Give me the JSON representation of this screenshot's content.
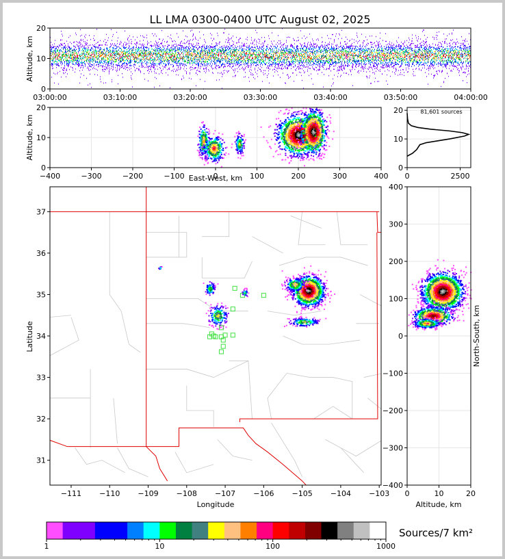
{
  "title": "LL LMA 0300-0400 UTC August 02, 2025",
  "colors": [
    "#ff4dff",
    "#8000ff",
    "#8000ff",
    "#0000ff",
    "#0000ff",
    "#0080ff",
    "#00ffff",
    "#00ff00",
    "#008040",
    "#408080",
    "#ffff00",
    "#ffc080",
    "#ff8000",
    "#ff0080",
    "#ff0000",
    "#c00000",
    "#800000",
    "#000000",
    "#808080",
    "#c0c0c0",
    "#ffffff"
  ],
  "chart_data": [
    {
      "type": "scatter",
      "panel": "altitude-time",
      "ylabel": "Altitude, km",
      "x_ticks": [
        "03:00:00",
        "03:10:00",
        "03:20:00",
        "03:30:00",
        "03:40:00",
        "03:50:00",
        "04:00:00"
      ],
      "y_ticks": [
        0,
        10,
        20
      ],
      "ylim": [
        0,
        20
      ],
      "band_altitude_km": {
        "low": 5,
        "core": 11,
        "high": 16
      }
    },
    {
      "type": "heatmap",
      "panel": "altitude-east-west",
      "xlabel": "East-West, km",
      "ylabel": "Altitude, km",
      "x_ticks": [
        -400,
        -300,
        -200,
        -100,
        0,
        100,
        200,
        300,
        400
      ],
      "y_ticks": [
        0,
        10,
        20
      ],
      "xlim": [
        -400,
        400
      ],
      "ylim": [
        0,
        20
      ],
      "clusters": [
        {
          "x": -30,
          "z": 9,
          "sx": 6,
          "sz": 2.5,
          "n": 80
        },
        {
          "x": -5,
          "z": 6.5,
          "sx": 12,
          "sz": 2,
          "n": 110
        },
        {
          "x": 57,
          "z": 8,
          "sx": 5,
          "sz": 1.5,
          "n": 50
        },
        {
          "x": 200,
          "z": 11,
          "sx": 25,
          "sz": 3.2,
          "n": 500
        },
        {
          "x": 235,
          "z": 12,
          "sx": 15,
          "sz": 3.5,
          "n": 280
        }
      ]
    },
    {
      "type": "line",
      "panel": "altitude-histogram",
      "annotation": "81,601 sources",
      "x_ticks": [
        0,
        2500
      ],
      "y_ticks": [
        0,
        10,
        20
      ],
      "xlim": [
        0,
        3000
      ],
      "ylim": [
        0,
        21
      ],
      "profile": [
        [
          0,
          4
        ],
        [
          250,
          5
        ],
        [
          450,
          6.3
        ],
        [
          600,
          8
        ],
        [
          900,
          8.7
        ],
        [
          1400,
          9.3
        ],
        [
          2000,
          10
        ],
        [
          2700,
          11
        ],
        [
          2900,
          11.6
        ],
        [
          2600,
          12.2
        ],
        [
          2000,
          12.8
        ],
        [
          1100,
          13.4
        ],
        [
          500,
          14
        ],
        [
          200,
          14.6
        ],
        [
          60,
          15.5
        ],
        [
          20,
          17
        ],
        [
          0,
          19
        ]
      ]
    },
    {
      "type": "heatmap",
      "panel": "plan-view",
      "xlabel": "Longitude",
      "ylabel": "Latitude",
      "x_ticks": [
        -111,
        -110,
        -109,
        -108,
        -107,
        -106,
        -105,
        -104,
        -103
      ],
      "y_ticks": [
        31,
        32,
        33,
        34,
        35,
        36,
        37
      ],
      "xlim": [
        -111.55,
        -102.95
      ],
      "ylim": [
        30.4,
        37.6
      ],
      "clusters": [
        {
          "lon": -104.85,
          "lat": 35.1,
          "slon": 0.2,
          "slat": 0.18,
          "n": 700
        },
        {
          "lon": -105.2,
          "lat": 35.25,
          "slon": 0.12,
          "slat": 0.08,
          "n": 120
        },
        {
          "lon": -104.95,
          "lat": 34.35,
          "slon": 0.18,
          "slat": 0.05,
          "n": 80
        },
        {
          "lon": -107.4,
          "lat": 35.15,
          "slon": 0.06,
          "slat": 0.08,
          "n": 50
        },
        {
          "lon": -107.2,
          "lat": 34.5,
          "slon": 0.12,
          "slat": 0.12,
          "n": 90
        },
        {
          "lon": -106.5,
          "lat": 35.05,
          "slon": 0.04,
          "slat": 0.04,
          "n": 25
        },
        {
          "lon": -108.7,
          "lat": 35.65,
          "slon": 0.02,
          "slat": 0.02,
          "n": 6
        }
      ],
      "stations": [
        [
          -107.3,
          34.0
        ],
        [
          -107.25,
          33.98
        ],
        [
          -107.1,
          33.98
        ],
        [
          -107.0,
          34.02
        ],
        [
          -107.1,
          34.2
        ],
        [
          -107.05,
          33.9
        ],
        [
          -107.05,
          33.75
        ],
        [
          -107.1,
          33.62
        ],
        [
          -107.35,
          34.05
        ],
        [
          -107.4,
          33.98
        ],
        [
          -106.8,
          34.02
        ],
        [
          -106.8,
          34.65
        ],
        [
          -106.75,
          35.15
        ],
        [
          -106.55,
          34.98
        ],
        [
          -106.0,
          34.98
        ]
      ]
    },
    {
      "type": "heatmap",
      "panel": "north-south-altitude",
      "xlabel": "Altitude, km",
      "ylabel": "North-South, km",
      "x_ticks": [
        0,
        10,
        20
      ],
      "y_ticks": [
        -400,
        -300,
        -200,
        -100,
        0,
        100,
        200,
        300,
        400
      ],
      "xlim": [
        0,
        20
      ],
      "ylim": [
        -400,
        400
      ],
      "clusters": [
        {
          "z": 11,
          "y": 120,
          "sz": 3.2,
          "sy": 25,
          "n": 600
        },
        {
          "z": 8,
          "y": 55,
          "sz": 3,
          "sy": 12,
          "n": 200
        },
        {
          "z": 6,
          "y": 35,
          "sz": 2,
          "sy": 6,
          "n": 120
        }
      ]
    },
    {
      "type": "heatmap",
      "panel": "colorbar",
      "label": "Sources/7 km²",
      "tick_labels": [
        "1",
        "10",
        "100",
        "1000"
      ],
      "range": [
        1,
        1000
      ]
    }
  ]
}
